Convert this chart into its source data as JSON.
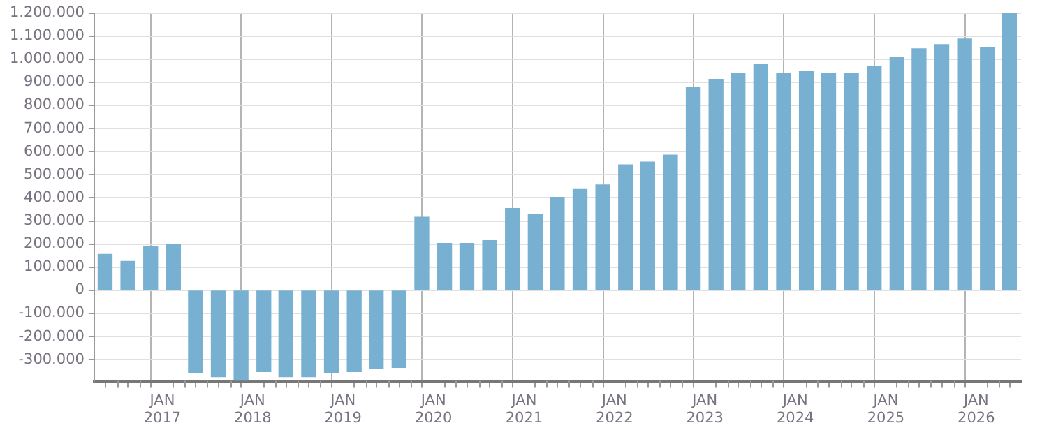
{
  "chart_data": {
    "type": "bar",
    "color": "#78b0d2",
    "grid": true,
    "x": [
      "2016-05-15",
      "2016-08-15",
      "2016-11-15",
      "2017-02-15",
      "2017-05-15",
      "2017-08-15",
      "2017-11-15",
      "2018-02-15",
      "2018-05-15",
      "2018-08-15",
      "2018-11-15",
      "2019-02-15",
      "2019-05-15",
      "2019-08-15",
      "2019-11-15",
      "2020-02-15",
      "2020-05-15",
      "2020-08-15",
      "2020-11-15",
      "2021-02-15",
      "2021-05-15",
      "2021-08-15",
      "2021-11-15",
      "2022-02-15",
      "2022-05-15",
      "2022-08-15",
      "2022-11-15",
      "2023-02-15",
      "2023-05-15",
      "2023-08-15",
      "2023-11-15",
      "2024-02-15",
      "2024-05-15",
      "2024-08-15",
      "2024-11-15",
      "2025-02-15",
      "2025-05-15",
      "2025-08-15",
      "2025-11-15",
      "2026-02-15",
      "2026-05-15"
    ],
    "values": [
      155000,
      125000,
      191000,
      197000,
      -358000,
      -374000,
      -390000,
      -352000,
      -374000,
      -374000,
      -358000,
      -352000,
      -340000,
      -334000,
      316000,
      203000,
      203000,
      215000,
      354000,
      328000,
      402000,
      436000,
      456000,
      543000,
      555000,
      585000,
      878000,
      913000,
      937000,
      979000,
      937000,
      949000,
      937000,
      937000,
      967000,
      1009000,
      1045000,
      1063000,
      1087000,
      1051000,
      1200000
    ],
    "xlim": [
      "2016-04-01",
      "2026-07-01"
    ],
    "xticks": [
      {
        "value": "2016-07-01",
        "label": null
      },
      {
        "value": "2016-10-01",
        "label": null
      },
      {
        "value": "2017-01-01",
        "label": "JAN 2017"
      },
      {
        "value": "2017-04-01",
        "label": null
      },
      {
        "value": "2017-07-01",
        "label": null
      },
      {
        "value": "2017-10-01",
        "label": null
      },
      {
        "value": "2018-01-01",
        "label": "JAN 2018"
      },
      {
        "value": "2018-04-01",
        "label": null
      },
      {
        "value": "2018-07-01",
        "label": null
      },
      {
        "value": "2018-10-01",
        "label": null
      },
      {
        "value": "2019-01-01",
        "label": "JAN 2019"
      },
      {
        "value": "2019-04-01",
        "label": null
      },
      {
        "value": "2019-07-01",
        "label": null
      },
      {
        "value": "2019-10-01",
        "label": null
      },
      {
        "value": "2020-01-01",
        "label": "JAN 2020"
      },
      {
        "value": "2020-04-01",
        "label": null
      },
      {
        "value": "2020-07-01",
        "label": null
      },
      {
        "value": "2020-10-01",
        "label": null
      },
      {
        "value": "2021-01-01",
        "label": "JAN 2021"
      },
      {
        "value": "2021-04-01",
        "label": null
      },
      {
        "value": "2021-07-01",
        "label": null
      },
      {
        "value": "2021-10-01",
        "label": null
      },
      {
        "value": "2022-01-01",
        "label": "JAN 2022"
      },
      {
        "value": "2022-04-01",
        "label": null
      },
      {
        "value": "2022-07-01",
        "label": null
      },
      {
        "value": "2022-10-01",
        "label": null
      },
      {
        "value": "2023-01-01",
        "label": "JAN 2023"
      },
      {
        "value": "2023-04-01",
        "label": null
      },
      {
        "value": "2023-07-01",
        "label": null
      },
      {
        "value": "2023-10-01",
        "label": null
      },
      {
        "value": "2024-01-01",
        "label": "JAN 2024"
      },
      {
        "value": "2024-04-01",
        "label": null
      },
      {
        "value": "2024-07-01",
        "label": null
      },
      {
        "value": "2024-10-01",
        "label": null
      },
      {
        "value": "2025-01-01",
        "label": "JAN 2025"
      },
      {
        "value": "2025-04-01",
        "label": null
      },
      {
        "value": "2025-07-01",
        "label": null
      },
      {
        "value": "2025-10-01",
        "label": null
      },
      {
        "value": "2026-01-01",
        "label": "JAN 2026"
      },
      {
        "value": "2026-04-01",
        "label": null
      }
    ],
    "ylim": [
      -392000,
      1200000
    ],
    "yticks": [
      {
        "value": -300000,
        "label": "-300.000"
      },
      {
        "value": -200000,
        "label": "-200.000"
      },
      {
        "value": -100000,
        "label": "-100.000"
      },
      0,
      {
        "value": 100000,
        "label": "100.000"
      },
      {
        "value": 200000,
        "label": "200.000"
      },
      {
        "value": 300000,
        "label": "300.000"
      },
      {
        "value": 400000,
        "label": "400.000"
      },
      {
        "value": 500000,
        "label": "500.000"
      },
      {
        "value": 600000,
        "label": "600.000"
      },
      {
        "value": 700000,
        "label": "700.000"
      },
      {
        "value": 800000,
        "label": "800.000"
      },
      {
        "value": 900000,
        "label": "900.000"
      },
      {
        "value": 1000000,
        "label": "1.000.000"
      },
      {
        "value": 1100000,
        "label": "1.100.000"
      },
      {
        "value": 1200000,
        "label": "1.200.000"
      }
    ]
  }
}
